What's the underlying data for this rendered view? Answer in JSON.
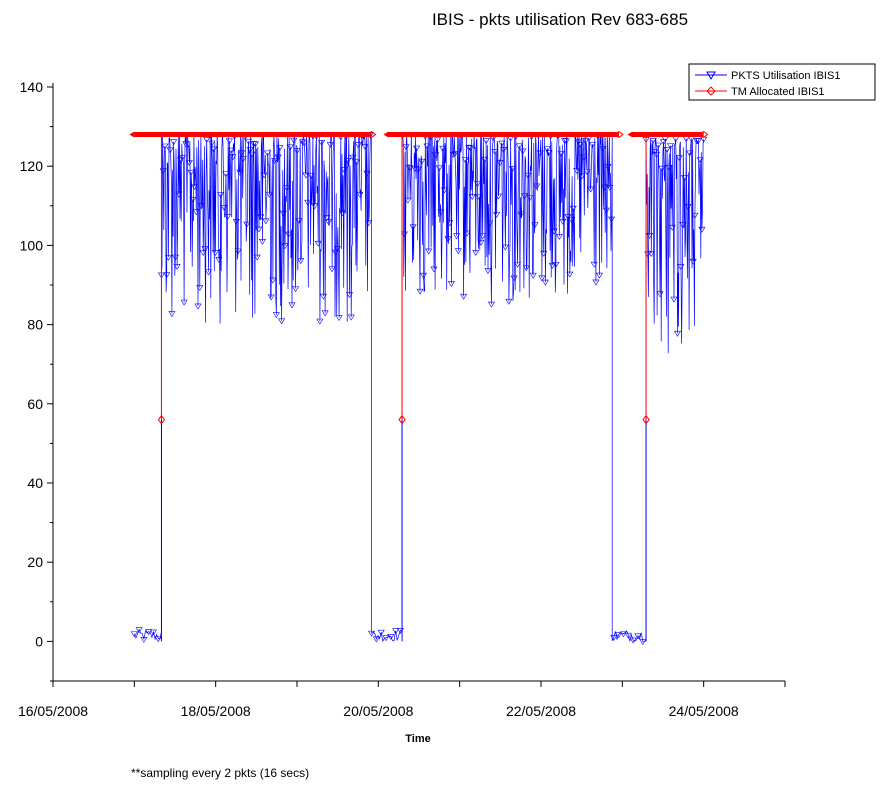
{
  "chart_data": {
    "type": "line",
    "title": "IBIS - pkts utilisation Rev 683-685",
    "xlabel": "Time",
    "ylabel": "",
    "footnote": "**sampling every 2 pkts (16 secs)",
    "xlim": [
      "16/05/2008",
      "25/05/2008"
    ],
    "ylim": [
      -10,
      140
    ],
    "y_ticks": [
      0,
      20,
      40,
      60,
      80,
      100,
      120,
      140
    ],
    "x_ticks": [
      "16/05/2008",
      "18/05/2008",
      "20/05/2008",
      "22/05/2008",
      "24/05/2008"
    ],
    "legend_position": "top-right",
    "grid": false,
    "series": [
      {
        "name": "PKTS Utilisation IBIS1",
        "color": "#0000ff",
        "marker": "triangle-down",
        "segments": [
          {
            "start": "17/05/2008 00:00",
            "end": "17/05/2008 08:00",
            "level": "low",
            "range": [
              0,
              3
            ]
          },
          {
            "start": "17/05/2008 08:00",
            "end": "19/05/2008 22:00",
            "level": "high",
            "range": [
              80,
              128
            ]
          },
          {
            "start": "19/05/2008 22:00",
            "end": "20/05/2008 07:00",
            "level": "low",
            "range": [
              0,
              3
            ]
          },
          {
            "start": "20/05/2008 07:00",
            "end": "22/05/2008 21:00",
            "level": "high",
            "range": [
              85,
              128
            ]
          },
          {
            "start": "22/05/2008 21:00",
            "end": "23/05/2008 07:00",
            "level": "low",
            "range": [
              0,
              3
            ]
          },
          {
            "start": "23/05/2008 07:00",
            "end": "24/05/2008 00:00",
            "level": "high",
            "range": [
              70,
              127
            ]
          }
        ]
      },
      {
        "name": "TM Allocated IBIS1",
        "color": "#ff0000",
        "marker": "diamond",
        "segments": [
          {
            "start": "17/05/2008 00:00",
            "end": "19/05/2008 22:00",
            "value": 128
          },
          {
            "start": "20/05/2008 03:00",
            "end": "22/05/2008 23:00",
            "value": 128
          },
          {
            "start": "23/05/2008 03:00",
            "end": "24/05/2008 00:00",
            "value": 128
          }
        ],
        "drops": [
          {
            "at": "17/05/2008 08:00",
            "value": 56
          },
          {
            "at": "20/05/2008 07:00",
            "value": 56
          },
          {
            "at": "23/05/2008 07:00",
            "value": 56
          }
        ]
      }
    ]
  }
}
